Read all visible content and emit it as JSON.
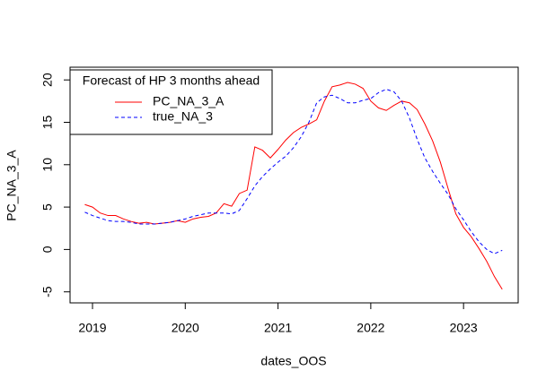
{
  "chart_data": {
    "type": "line",
    "xlabel": "dates_OOS",
    "ylabel": "PC_NA_3_A",
    "legend_title": "Forecast of HP 3 months ahead",
    "legend": "topleft",
    "x": [
      2018.917,
      2019.0,
      2019.083,
      2019.167,
      2019.25,
      2019.333,
      2019.417,
      2019.5,
      2019.583,
      2019.667,
      2019.75,
      2019.833,
      2019.917,
      2020.0,
      2020.083,
      2020.167,
      2020.25,
      2020.333,
      2020.417,
      2020.5,
      2020.583,
      2020.667,
      2020.75,
      2020.833,
      2020.917,
      2021.0,
      2021.083,
      2021.167,
      2021.25,
      2021.333,
      2021.417,
      2021.5,
      2021.583,
      2021.667,
      2021.75,
      2021.833,
      2021.917,
      2022.0,
      2022.083,
      2022.167,
      2022.25,
      2022.333,
      2022.417,
      2022.5,
      2022.583,
      2022.667,
      2022.75,
      2022.833,
      2022.917,
      2023.0,
      2023.083,
      2023.167,
      2023.25,
      2023.333,
      2023.417
    ],
    "series": [
      {
        "name": "PC_NA_3_A",
        "color": "#ff0000",
        "dash": false,
        "values": [
          5.3,
          5.0,
          4.3,
          4.0,
          4.0,
          3.6,
          3.3,
          3.1,
          3.2,
          3.0,
          3.1,
          3.2,
          3.4,
          3.2,
          3.6,
          3.8,
          3.9,
          4.3,
          5.4,
          5.1,
          6.6,
          7.0,
          12.1,
          11.7,
          10.8,
          11.8,
          12.9,
          13.8,
          14.4,
          14.8,
          15.3,
          17.5,
          19.2,
          19.4,
          19.7,
          19.5,
          19.0,
          17.5,
          16.7,
          16.4,
          17.0,
          17.5,
          17.3,
          16.5,
          14.8,
          12.8,
          10.3,
          7.2,
          4.2,
          2.6,
          1.5,
          0.1,
          -1.4,
          -3.2,
          -4.7
        ]
      },
      {
        "name": "true_NA_3",
        "color": "#0000ff",
        "dash": true,
        "values": [
          4.4,
          4.0,
          3.7,
          3.4,
          3.3,
          3.3,
          3.2,
          3.0,
          3.0,
          3.0,
          3.1,
          3.2,
          3.4,
          3.6,
          3.9,
          4.1,
          4.3,
          4.3,
          4.3,
          4.2,
          4.6,
          6.0,
          7.5,
          8.6,
          9.5,
          10.3,
          11.0,
          12.0,
          13.3,
          15.0,
          17.3,
          18.0,
          18.2,
          17.8,
          17.3,
          17.3,
          17.6,
          17.8,
          18.5,
          18.9,
          18.6,
          17.5,
          15.5,
          13.0,
          10.8,
          9.2,
          7.8,
          6.5,
          4.8,
          3.5,
          2.1,
          0.9,
          0.0,
          -0.5,
          -0.1
        ]
      }
    ],
    "xlim": [
      2018.758,
      2023.589
    ],
    "xticks": [
      2019,
      2020,
      2021,
      2022,
      2023
    ],
    "ylim": [
      -6.3,
      21.5
    ],
    "yticks": [
      -5,
      0,
      5,
      10,
      15,
      20
    ]
  }
}
